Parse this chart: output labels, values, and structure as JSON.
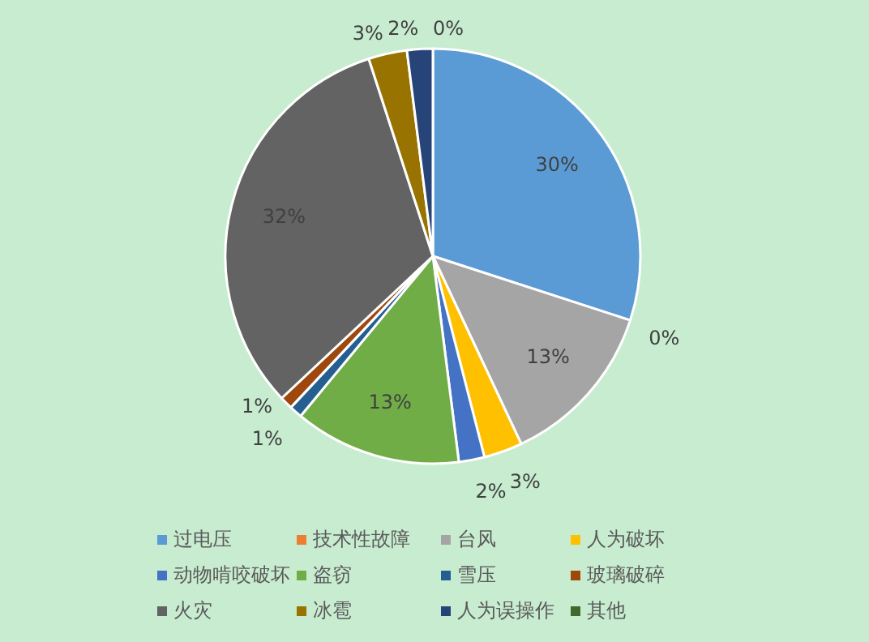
{
  "chart_data": {
    "type": "pie",
    "legend": "bottom",
    "categories": [
      "过电压",
      "技术性故障",
      "台风",
      "人为破坏",
      "动物啃咬破坏",
      "盗窃",
      "雪压",
      "玻璃破碎",
      "火灾",
      "冰雹",
      "人为误操作",
      "其他"
    ],
    "values": [
      30,
      0,
      13,
      3,
      2,
      13,
      1,
      1,
      32,
      3,
      2,
      0
    ],
    "value_labels": [
      "30%",
      "0%",
      "13%",
      "3%",
      "2%",
      "13%",
      "1%",
      "1%",
      "32%",
      "3%",
      "2%",
      "0%"
    ],
    "colors": [
      "#5b9bd5",
      "#ed7d31",
      "#a5a5a5",
      "#ffc000",
      "#4472c4",
      "#70ad47",
      "#255e91",
      "#9e480e",
      "#636363",
      "#997300",
      "#264478",
      "#43682b"
    ]
  }
}
